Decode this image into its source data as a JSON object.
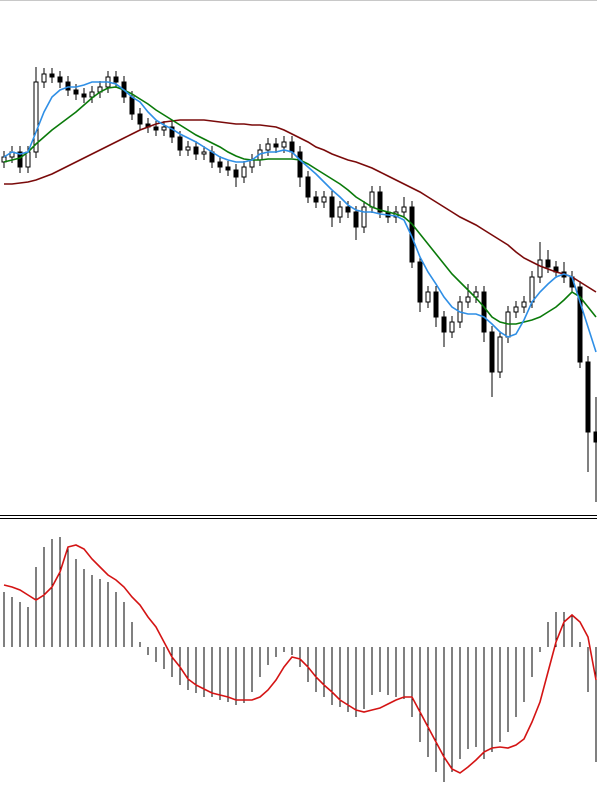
{
  "chart_data": [
    {
      "type": "candlestick",
      "categories": [
        null,
        null,
        null,
        null,
        null,
        null,
        null,
        null,
        null,
        null,
        null,
        null,
        null,
        null,
        null,
        null,
        null,
        null,
        null,
        null,
        null,
        null,
        null,
        null,
        null,
        null,
        null,
        null,
        null,
        null,
        null,
        null,
        null,
        null,
        null,
        null,
        null,
        null,
        null,
        null,
        null,
        null,
        null,
        null,
        null,
        null,
        null,
        null,
        null,
        null,
        null,
        null,
        null,
        null,
        null,
        null,
        null,
        null,
        null,
        null,
        null,
        null,
        null,
        null,
        null,
        null,
        null,
        null,
        null,
        null,
        null,
        null,
        null,
        null,
        null
      ],
      "open": [
        350,
        355,
        360,
        345,
        360,
        430,
        438,
        435,
        430,
        422,
        418,
        415,
        420,
        425,
        435,
        430,
        415,
        398,
        388,
        385,
        382,
        385,
        375,
        362,
        365,
        358,
        360,
        350,
        345,
        342,
        335,
        345,
        352,
        362,
        368,
        365,
        370,
        360,
        335,
        315,
        310,
        315,
        295,
        305,
        300,
        285,
        305,
        320,
        300,
        295,
        300,
        305,
        250,
        210,
        220,
        195,
        180,
        190,
        210,
        215,
        220,
        180,
        140,
        175,
        200,
        205,
        210,
        235,
        252,
        245,
        240,
        235,
        225,
        150,
        80
      ],
      "high": [
        361,
        366,
        366,
        366,
        445,
        444,
        444,
        441,
        436,
        428,
        424,
        426,
        431,
        441,
        441,
        436,
        421,
        404,
        394,
        391,
        391,
        391,
        381,
        371,
        371,
        366,
        366,
        356,
        351,
        348,
        351,
        358,
        368,
        374,
        374,
        376,
        376,
        366,
        341,
        321,
        321,
        321,
        311,
        311,
        306,
        311,
        326,
        326,
        306,
        306,
        315,
        311,
        256,
        226,
        226,
        201,
        196,
        216,
        228,
        226,
        226,
        186,
        181,
        206,
        211,
        216,
        241,
        270,
        262,
        251,
        250,
        241,
        231,
        156,
        115
      ],
      "low": [
        344,
        349,
        339,
        339,
        354,
        424,
        429,
        424,
        416,
        412,
        409,
        409,
        414,
        419,
        424,
        409,
        392,
        382,
        379,
        376,
        376,
        369,
        356,
        356,
        352,
        352,
        344,
        339,
        336,
        325,
        329,
        339,
        346,
        356,
        359,
        359,
        354,
        325,
        309,
        304,
        304,
        285,
        289,
        294,
        272,
        279,
        299,
        294,
        289,
        289,
        294,
        244,
        200,
        204,
        185,
        165,
        174,
        184,
        204,
        209,
        170,
        115,
        134,
        169,
        194,
        199,
        204,
        229,
        239,
        234,
        229,
        219,
        144,
        40,
        10
      ],
      "close": [
        355,
        360,
        345,
        360,
        430,
        438,
        435,
        430,
        422,
        418,
        415,
        420,
        425,
        435,
        430,
        415,
        398,
        388,
        385,
        382,
        385,
        375,
        362,
        365,
        358,
        360,
        350,
        345,
        342,
        335,
        345,
        352,
        362,
        368,
        365,
        370,
        360,
        335,
        315,
        310,
        315,
        295,
        305,
        300,
        285,
        305,
        320,
        300,
        295,
        300,
        305,
        250,
        210,
        220,
        195,
        180,
        190,
        210,
        215,
        220,
        180,
        140,
        175,
        200,
        205,
        210,
        235,
        252,
        245,
        240,
        235,
        225,
        150,
        80,
        70
      ],
      "up_color": "#ffffff",
      "down_color": "#000000",
      "series": [
        {
          "color": "#7a0a0a",
          "values": [
            328,
            328,
            329,
            330,
            332,
            335,
            338,
            342,
            346,
            350,
            354,
            358,
            362,
            366,
            370,
            374,
            378,
            382,
            385,
            388,
            390,
            391,
            392,
            392,
            392,
            392,
            391,
            390,
            389,
            388,
            388,
            387,
            387,
            386,
            385,
            382,
            378,
            374,
            370,
            365,
            362,
            358,
            355,
            352,
            350,
            347,
            344,
            340,
            336,
            332,
            328,
            324,
            320,
            315,
            310,
            305,
            300,
            295,
            291,
            287,
            282,
            277,
            272,
            267,
            260,
            254,
            250,
            246,
            243,
            240,
            238,
            235,
            230,
            225,
            220
          ]
        },
        {
          "color": "#0a7a0a",
          "values": [
            350,
            352,
            354,
            360,
            368,
            375,
            382,
            388,
            394,
            400,
            407,
            414,
            420,
            424,
            425,
            422,
            418,
            413,
            408,
            402,
            397,
            392,
            387,
            382,
            377,
            373,
            369,
            365,
            360,
            356,
            353,
            352,
            352,
            353,
            353,
            353,
            353,
            352,
            348,
            343,
            338,
            333,
            328,
            322,
            315,
            310,
            305,
            302,
            300,
            298,
            295,
            288,
            278,
            268,
            258,
            248,
            238,
            230,
            222,
            214,
            205,
            195,
            190,
            188,
            188,
            190,
            192,
            195,
            200,
            205,
            212,
            220,
            215,
            205,
            195
          ]
        },
        {
          "color": "#2f8fe6",
          "values": [
            355,
            360,
            358,
            360,
            380,
            400,
            415,
            422,
            425,
            425,
            427,
            430,
            430,
            430,
            428,
            422,
            415,
            410,
            400,
            392,
            387,
            383,
            378,
            374,
            370,
            365,
            360,
            355,
            352,
            350,
            350,
            352,
            358,
            360,
            360,
            362,
            360,
            352,
            345,
            338,
            330,
            322,
            315,
            307,
            302,
            300,
            300,
            298,
            297,
            296,
            292,
            275,
            255,
            240,
            228,
            215,
            205,
            200,
            198,
            198,
            195,
            188,
            180,
            175,
            178,
            192,
            210,
            220,
            228,
            235,
            238,
            235,
            210,
            185,
            160
          ]
        }
      ],
      "ylim": [
        0,
        510
      ]
    },
    {
      "type": "bar",
      "categories": [
        null,
        null,
        null,
        null,
        null,
        null,
        null,
        null,
        null,
        null,
        null,
        null,
        null,
        null,
        null,
        null,
        null,
        null,
        null,
        null,
        null,
        null,
        null,
        null,
        null,
        null,
        null,
        null,
        null,
        null,
        null,
        null,
        null,
        null,
        null,
        null,
        null,
        null,
        null,
        null,
        null,
        null,
        null,
        null,
        null,
        null,
        null,
        null,
        null,
        null,
        null,
        null,
        null,
        null,
        null,
        null,
        null,
        null,
        null,
        null,
        null,
        null,
        null,
        null,
        null,
        null,
        null,
        null,
        null,
        null,
        null,
        null,
        null,
        null,
        null
      ],
      "values": [
        55,
        50,
        45,
        40,
        80,
        100,
        108,
        110,
        100,
        88,
        78,
        72,
        68,
        65,
        55,
        45,
        25,
        5,
        -8,
        -15,
        -22,
        -30,
        -38,
        -43,
        -46,
        -50,
        -50,
        -53,
        -55,
        -58,
        -56,
        -45,
        -30,
        -18,
        -10,
        -5,
        -8,
        -20,
        -35,
        -45,
        -50,
        -58,
        -60,
        -65,
        -70,
        -62,
        -48,
        -45,
        -48,
        -50,
        -52,
        -70,
        -95,
        -110,
        -125,
        -135,
        -125,
        -112,
        -102,
        -100,
        -112,
        -105,
        -95,
        -85,
        -70,
        -55,
        -30,
        -5,
        25,
        35,
        35,
        32,
        5,
        -45,
        -115
      ],
      "color": "#000000",
      "overlay": {
        "type": "line",
        "color": "#d41414",
        "values": [
          62,
          60,
          57,
          52,
          47,
          52,
          60,
          75,
          100,
          102,
          98,
          88,
          80,
          72,
          67,
          60,
          50,
          42,
          30,
          20,
          5,
          -10,
          -20,
          -32,
          -38,
          -42,
          -46,
          -48,
          -50,
          -53,
          -53,
          -53,
          -50,
          -43,
          -33,
          -20,
          -10,
          -12,
          -20,
          -30,
          -38,
          -45,
          -53,
          -58,
          -63,
          -65,
          -63,
          -61,
          -57,
          -53,
          -50,
          -50,
          -65,
          -80,
          -95,
          -110,
          -122,
          -126,
          -120,
          -113,
          -105,
          -101,
          -100,
          -101,
          -98,
          -92,
          -75,
          -55,
          -25,
          5,
          25,
          32,
          25,
          10,
          -33
        ]
      },
      "ylim": [
        -147,
        127
      ]
    }
  ]
}
